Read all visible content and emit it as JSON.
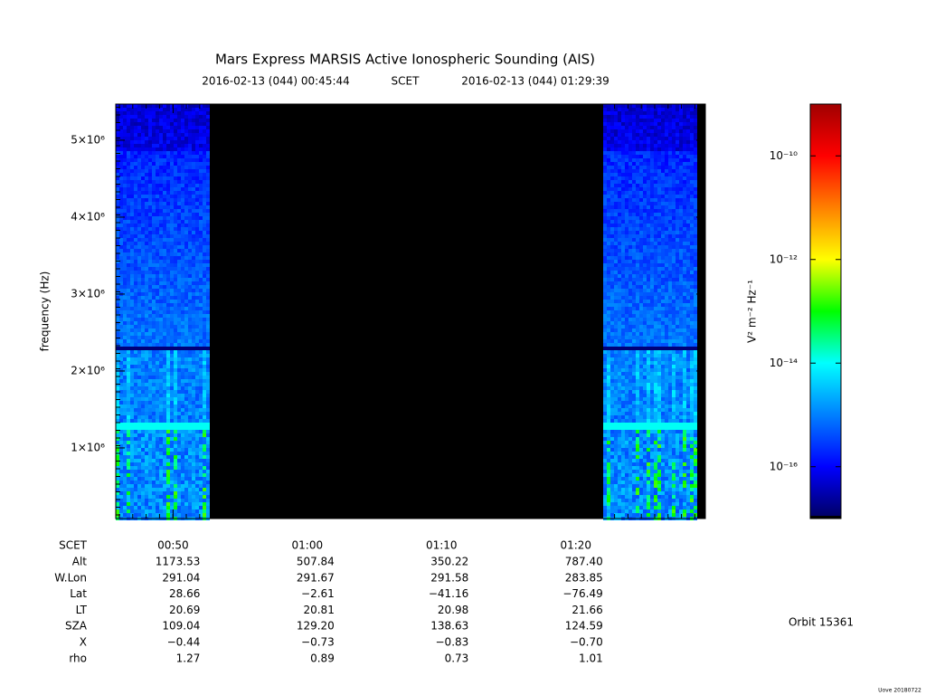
{
  "chart_data": {
    "type": "spectrogram",
    "title": "Mars Express MARSIS Active Ionospheric Sounding (AIS)",
    "start_time": "2016-02-13 (044) 00:45:44",
    "time_label": "SCET",
    "end_time": "2016-02-13 (044) 01:29:39",
    "y_label": "frequency (Hz)",
    "xlim": [
      45.73,
      89.65
    ],
    "xticks": [
      {
        "value": 50,
        "label": "00:50"
      },
      {
        "value": 60,
        "label": "01:00"
      },
      {
        "value": 70,
        "label": "01:10"
      },
      {
        "value": 80,
        "label": "01:20"
      }
    ],
    "ylim": [
      82000,
      5470000
    ],
    "yticks": [
      {
        "value": 1000000,
        "label": "1×10⁶"
      },
      {
        "value": 2000000,
        "label": "2×10⁶"
      },
      {
        "value": 3000000,
        "label": "3×10⁶"
      },
      {
        "value": 4000000,
        "label": "4×10⁶"
      },
      {
        "value": 5000000,
        "label": "5×10⁶"
      }
    ],
    "colorbar": {
      "label": "V² m⁻² Hz⁻¹",
      "log": true,
      "lim": [
        1e-17,
        1e-09
      ],
      "ticks": [
        {
          "value": 1e-16,
          "label": "10⁻¹⁶"
        },
        {
          "value": 1e-14,
          "label": "10⁻¹⁴"
        },
        {
          "value": 1e-12,
          "label": "10⁻¹²"
        },
        {
          "value": 1e-10,
          "label": "10⁻¹⁰"
        }
      ],
      "colormap": [
        "#000060",
        "#0000ff",
        "#0080ff",
        "#00ffff",
        "#00ff00",
        "#ffff00",
        "#ff8000",
        "#ff0000",
        "#a00000"
      ]
    },
    "ephemeris": {
      "row_label": "SCET",
      "labels": [
        "Alt",
        "W.Lon",
        "Lat",
        "LT",
        "SZA",
        "X",
        "rho"
      ],
      "rows": [
        [
          "1173.53",
          "507.84",
          "350.22",
          "787.40"
        ],
        [
          "291.04",
          "291.67",
          "291.58",
          "283.85"
        ],
        [
          "28.66",
          "−2.61",
          "−41.16",
          "−76.49"
        ],
        [
          "20.69",
          "20.81",
          "20.98",
          "21.66"
        ],
        [
          "109.04",
          "129.20",
          "138.63",
          "124.59"
        ],
        [
          "−0.44",
          "−0.73",
          "−0.83",
          "−0.70"
        ],
        [
          "1.27",
          "0.89",
          "0.73",
          "1.01"
        ]
      ]
    },
    "orbit": "Orbit 15361",
    "footer": "Uove 20180722"
  }
}
